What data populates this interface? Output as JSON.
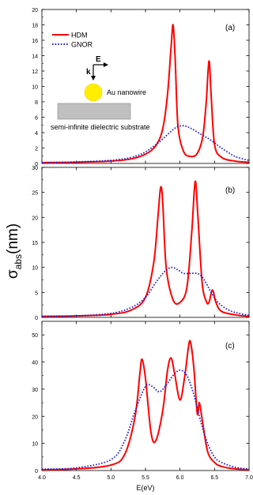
{
  "chart_data": [
    {
      "type": "line",
      "panel_label": "(a)",
      "xlim": [
        4.0,
        7.0
      ],
      "ylim": [
        0,
        20
      ],
      "yticks": [
        0,
        2,
        4,
        6,
        8,
        10,
        12,
        14,
        16,
        18,
        20
      ],
      "series": [
        {
          "name": "HDM",
          "color": "#ff0000",
          "style": "solid",
          "x": [
            4.0,
            4.5,
            5.0,
            5.3,
            5.5,
            5.65,
            5.75,
            5.82,
            5.87,
            5.9,
            5.93,
            5.97,
            6.05,
            6.15,
            6.25,
            6.33,
            6.38,
            6.42,
            6.45,
            6.5,
            6.6,
            6.8,
            7.0
          ],
          "y": [
            0.1,
            0.15,
            0.3,
            0.6,
            1.2,
            2.3,
            4.5,
            9.0,
            15.0,
            18.0,
            13.5,
            5.0,
            1.6,
            0.9,
            1.3,
            3.5,
            8.0,
            13.3,
            9.0,
            2.5,
            0.8,
            0.3,
            0.15
          ]
        },
        {
          "name": "GNOR",
          "color": "#1f1fcf",
          "style": "dotted",
          "x": [
            4.0,
            4.5,
            5.0,
            5.3,
            5.5,
            5.7,
            5.85,
            5.95,
            6.05,
            6.15,
            6.3,
            6.45,
            6.6,
            6.8,
            7.0
          ],
          "y": [
            0.1,
            0.2,
            0.4,
            0.8,
            1.5,
            2.8,
            4.0,
            4.7,
            4.9,
            4.6,
            3.8,
            3.0,
            2.0,
            0.9,
            0.4
          ]
        }
      ],
      "legend": {
        "position": "top-left"
      },
      "inset": {
        "e_label": "E",
        "k_label": "k",
        "particle_label": "Au nanowire",
        "substrate_label": "semi-infinite dielectric substrate"
      }
    },
    {
      "type": "line",
      "panel_label": "(b)",
      "xlim": [
        4.0,
        7.0
      ],
      "ylim": [
        0,
        30
      ],
      "yticks": [
        0,
        5,
        10,
        15,
        20,
        25,
        30
      ],
      "series": [
        {
          "name": "HDM",
          "color": "#ff0000",
          "style": "solid",
          "x": [
            4.0,
            4.5,
            5.0,
            5.3,
            5.5,
            5.62,
            5.68,
            5.72,
            5.75,
            5.8,
            5.9,
            6.0,
            6.1,
            6.17,
            6.22,
            6.26,
            6.32,
            6.38,
            6.42,
            6.47,
            6.52,
            6.6,
            6.8,
            7.0
          ],
          "y": [
            0.2,
            0.3,
            0.6,
            1.5,
            4.0,
            11.0,
            20.0,
            26.0,
            23.0,
            10.0,
            3.5,
            3.0,
            6.0,
            17.0,
            27.2,
            20.0,
            7.0,
            3.2,
            3.0,
            5.5,
            3.0,
            1.2,
            0.5,
            0.2
          ]
        },
        {
          "name": "GNOR",
          "color": "#1f1fcf",
          "style": "dotted",
          "x": [
            4.0,
            4.5,
            5.0,
            5.3,
            5.5,
            5.65,
            5.78,
            5.88,
            5.97,
            6.05,
            6.15,
            6.27,
            6.35,
            6.45,
            6.55,
            6.7,
            6.85,
            7.0
          ],
          "y": [
            0.2,
            0.3,
            0.8,
            2.0,
            4.0,
            7.0,
            9.2,
            10.0,
            9.5,
            8.8,
            8.8,
            8.7,
            7.5,
            5.0,
            3.0,
            1.5,
            0.8,
            0.4
          ]
        }
      ]
    },
    {
      "type": "line",
      "panel_label": "(c)",
      "xlim": [
        4.0,
        7.0
      ],
      "ylim": [
        0,
        55
      ],
      "yticks": [
        0,
        10,
        20,
        30,
        40,
        50
      ],
      "series": [
        {
          "name": "HDM",
          "color": "#ff0000",
          "style": "solid",
          "x": [
            4.0,
            4.5,
            5.0,
            5.2,
            5.35,
            5.42,
            5.45,
            5.5,
            5.58,
            5.65,
            5.75,
            5.82,
            5.87,
            5.92,
            6.0,
            6.07,
            6.12,
            6.15,
            6.2,
            6.25,
            6.28,
            6.32,
            6.4,
            6.5,
            6.6,
            6.8,
            7.0
          ],
          "y": [
            0.3,
            0.6,
            2.0,
            6.0,
            20.0,
            36.0,
            41.0,
            34.0,
            14.0,
            11.0,
            22.0,
            37.0,
            41.5,
            36.0,
            26.0,
            35.0,
            45.0,
            47.5,
            38.0,
            21.0,
            25.0,
            19.0,
            7.0,
            3.0,
            1.5,
            0.6,
            0.3
          ]
        },
        {
          "name": "GNOR",
          "color": "#1f1fcf",
          "style": "dotted",
          "x": [
            4.0,
            4.5,
            5.0,
            5.2,
            5.35,
            5.5,
            5.6,
            5.7,
            5.8,
            5.9,
            6.0,
            6.1,
            6.2,
            6.3,
            6.4,
            6.5,
            6.6,
            6.8,
            7.0
          ],
          "y": [
            0.5,
            1.0,
            4.0,
            11.0,
            22.0,
            31.0,
            31.0,
            29.0,
            31.5,
            35.0,
            37.0,
            35.0,
            28.0,
            18.0,
            10.0,
            5.0,
            3.0,
            1.2,
            0.5
          ]
        }
      ]
    }
  ],
  "x_axis": {
    "xticks": [
      4.0,
      4.5,
      5.0,
      5.5,
      6.0,
      6.5,
      7.0
    ],
    "xtick_labels": [
      "4.0",
      "4.5",
      "5.0",
      "5.5",
      "6.0",
      "6.5",
      "7.0"
    ],
    "xlabel": "E(eV)"
  },
  "ylabel": {
    "main": "σ",
    "sub": "abs",
    "unit": "(nm)"
  }
}
